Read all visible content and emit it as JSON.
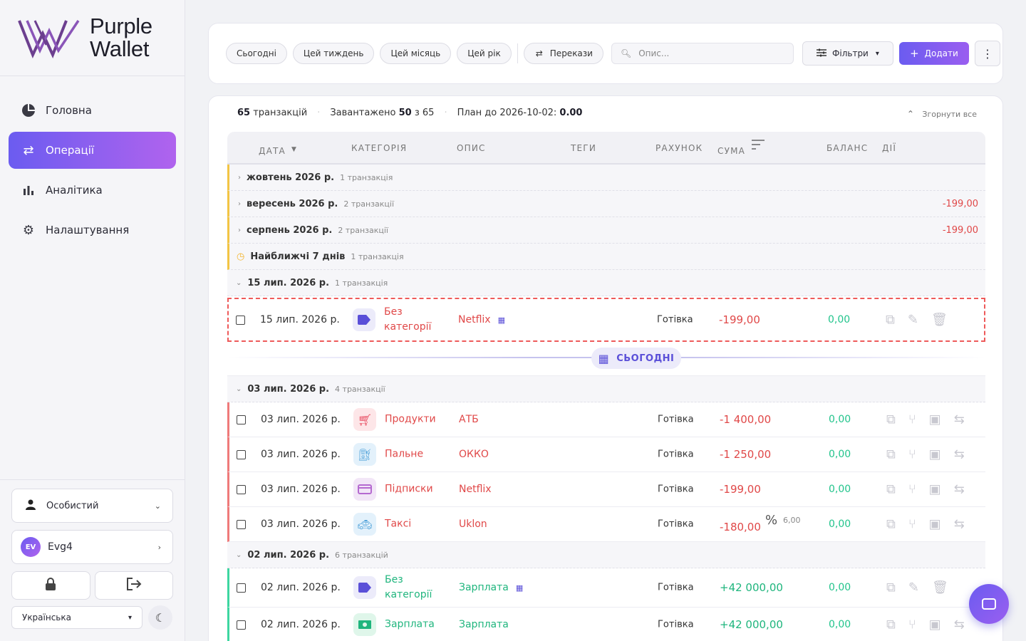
{
  "app": {
    "logo_line1": "Purple",
    "logo_line2": "Wallet"
  },
  "nav": [
    {
      "label": "Головна",
      "icon": "pie-chart-icon"
    },
    {
      "label": "Операції",
      "icon": "swap-arrows-icon",
      "active": true
    },
    {
      "label": "Аналітика",
      "icon": "bar-chart-icon"
    },
    {
      "label": "Налаштування",
      "icon": "gear-icon"
    }
  ],
  "sidebar_bottom": {
    "profile": "Особистий",
    "user_initials": "EV",
    "user_name": "Evg4",
    "language": "Українська"
  },
  "toolbar": {
    "periods": [
      "Сьогодні",
      "Цей тиждень",
      "Цей місяць",
      "Цей рік"
    ],
    "transfers": "Перекази",
    "search_placeholder": "Опис...",
    "filters": "Фільтри",
    "add": "Додати"
  },
  "summary": {
    "count": "65",
    "count_label": "транзакцій",
    "loaded_label": "Завантажено",
    "loaded": "50",
    "of_label": "з",
    "total": "65",
    "plan_label": "План до 2026-10-02:",
    "plan_value": "0.00",
    "collapse_all": "Згорнути все"
  },
  "columns": [
    "ДАТА",
    "КАТЕГОРІЯ",
    "ОПИС",
    "ТЕГИ",
    "РАХУНОК",
    "СУМА",
    "БАЛАНС",
    "ДІЇ"
  ],
  "groups": [
    {
      "title": "жовтень 2026 р.",
      "count": "1 транзакція",
      "amount": ""
    },
    {
      "title": "вересень 2026 р.",
      "count": "2 транзакції",
      "amount": "-199,00"
    },
    {
      "title": "серпень 2026 р.",
      "count": "2 транзакції",
      "amount": "-199,00"
    },
    {
      "title": "Найближчі 7 днів",
      "count": "1 транзакція",
      "amount": ""
    }
  ],
  "day_groups": [
    {
      "title": "15 лип. 2026 р.",
      "count": "1 транзакція"
    },
    {
      "title": "03 лип. 2026 р.",
      "count": "4 транзакції"
    },
    {
      "title": "02 лип. 2026 р.",
      "count": "6 транзакцій"
    }
  ],
  "today_label": "СЬОГОДНІ",
  "rows": [
    {
      "date": "15 лип. 2026 р.",
      "category": "Без категорії",
      "desc": "Netflix",
      "account": "Готівка",
      "amount": "-199,00",
      "balance": "0,00"
    },
    {
      "date": "03 лип. 2026 р.",
      "category": "Продукти",
      "desc": "АТБ",
      "account": "Готівка",
      "amount": "-1 400,00",
      "balance": "0,00"
    },
    {
      "date": "03 лип. 2026 р.",
      "category": "Пальне",
      "desc": "ОККО",
      "account": "Готівка",
      "amount": "-1 250,00",
      "balance": "0,00"
    },
    {
      "date": "03 лип. 2026 р.",
      "category": "Підписки",
      "desc": "Netflix",
      "account": "Готівка",
      "amount": "-199,00",
      "balance": "0,00"
    },
    {
      "date": "03 лип. 2026 р.",
      "category": "Таксі",
      "desc": "Uklon",
      "account": "Готівка",
      "amount": "-180,00",
      "balance": "0,00",
      "percent": "6,00"
    },
    {
      "date": "02 лип. 2026 р.",
      "category": "Без категорії",
      "desc": "Зарплата",
      "account": "Готівка",
      "amount": "+42 000,00",
      "balance": "0,00"
    },
    {
      "date": "02 лип. 2026 р.",
      "category": "Зарплата",
      "desc": "Зарплата",
      "account": "Готівка",
      "amount": "+42 000,00",
      "balance": "0,00"
    }
  ],
  "colors": {
    "accent": "#6b5cf0",
    "negative": "#e04848",
    "positive": "#1fb57d"
  }
}
